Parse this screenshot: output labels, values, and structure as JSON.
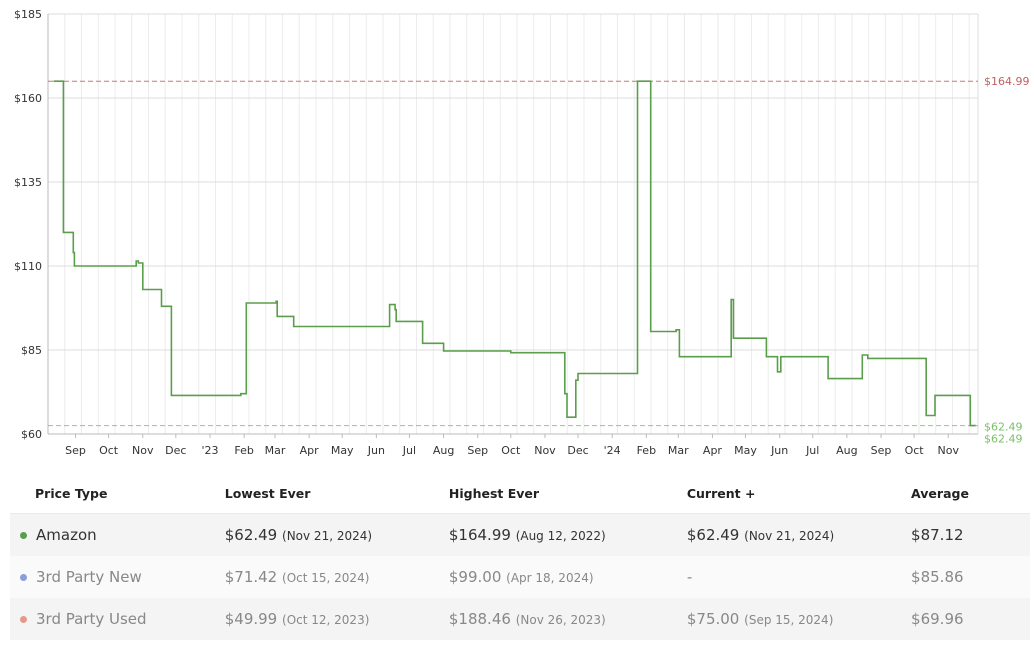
{
  "chart_data": {
    "type": "line",
    "xlim": [
      "2022-08-07",
      "2024-11-28"
    ],
    "ylim": [
      60,
      185
    ],
    "y_ticks": [
      60,
      85,
      110,
      135,
      160,
      185
    ],
    "y_tick_labels": [
      "$60",
      "$85",
      "$110",
      "$135",
      "$160",
      "$185"
    ],
    "x_ticks": [
      {
        "date": "2022-09-01",
        "label": "Sep"
      },
      {
        "date": "2022-10-01",
        "label": "Oct"
      },
      {
        "date": "2022-11-01",
        "label": "Nov"
      },
      {
        "date": "2022-12-01",
        "label": "Dec"
      },
      {
        "date": "2023-01-01",
        "label": "'23"
      },
      {
        "date": "2023-02-01",
        "label": "Feb"
      },
      {
        "date": "2023-03-01",
        "label": "Mar"
      },
      {
        "date": "2023-04-01",
        "label": "Apr"
      },
      {
        "date": "2023-05-01",
        "label": "May"
      },
      {
        "date": "2023-06-01",
        "label": "Jun"
      },
      {
        "date": "2023-07-01",
        "label": "Jul"
      },
      {
        "date": "2023-08-01",
        "label": "Aug"
      },
      {
        "date": "2023-09-01",
        "label": "Sep"
      },
      {
        "date": "2023-10-01",
        "label": "Oct"
      },
      {
        "date": "2023-11-01",
        "label": "Nov"
      },
      {
        "date": "2023-12-01",
        "label": "Dec"
      },
      {
        "date": "2024-01-01",
        "label": "'24"
      },
      {
        "date": "2024-02-01",
        "label": "Feb"
      },
      {
        "date": "2024-03-01",
        "label": "Mar"
      },
      {
        "date": "2024-04-01",
        "label": "Apr"
      },
      {
        "date": "2024-05-01",
        "label": "May"
      },
      {
        "date": "2024-06-01",
        "label": "Jun"
      },
      {
        "date": "2024-07-01",
        "label": "Jul"
      },
      {
        "date": "2024-08-01",
        "label": "Aug"
      },
      {
        "date": "2024-09-01",
        "label": "Sep"
      },
      {
        "date": "2024-10-01",
        "label": "Oct"
      },
      {
        "date": "2024-11-01",
        "label": "Nov"
      }
    ],
    "grid": true,
    "reference_lines": [
      {
        "label": "$164.99",
        "value": 164.99,
        "color": "#c06060"
      },
      {
        "label": "$62.49",
        "value": 62.49,
        "color": "#7cbf6a"
      }
    ],
    "end_labels": [
      {
        "label": "$62.49",
        "color": "#7cbf6a"
      },
      {
        "label": "$62.49",
        "color": "#7cbf6a"
      }
    ],
    "series": [
      {
        "name": "Amazon",
        "color": "#5a9e4c",
        "step": true,
        "points": [
          [
            "2022-08-12",
            164.99
          ],
          [
            "2022-08-21",
            120
          ],
          [
            "2022-08-30",
            114
          ],
          [
            "2022-08-31",
            109.99
          ],
          [
            "2022-10-26",
            111.5
          ],
          [
            "2022-10-28",
            110.9
          ],
          [
            "2022-11-01",
            103
          ],
          [
            "2022-11-18",
            98
          ],
          [
            "2022-11-27",
            71.5
          ],
          [
            "2023-01-29",
            72
          ],
          [
            "2023-02-03",
            99
          ],
          [
            "2023-03-02",
            99.5
          ],
          [
            "2023-03-03",
            95
          ],
          [
            "2023-03-18",
            92
          ],
          [
            "2023-06-13",
            98.5
          ],
          [
            "2023-06-18",
            97
          ],
          [
            "2023-06-19",
            93.5
          ],
          [
            "2023-07-13",
            87
          ],
          [
            "2023-08-01",
            84.7
          ],
          [
            "2023-10-01",
            84.2
          ],
          [
            "2023-11-19",
            72
          ],
          [
            "2023-11-21",
            65
          ],
          [
            "2023-11-29",
            76
          ],
          [
            "2023-12-01",
            78
          ],
          [
            "2024-01-24",
            164.99
          ],
          [
            "2024-02-05",
            90.5
          ],
          [
            "2024-02-28",
            91
          ],
          [
            "2024-03-02",
            83
          ],
          [
            "2024-04-18",
            99.99
          ],
          [
            "2024-04-20",
            88.5
          ],
          [
            "2024-05-20",
            83
          ],
          [
            "2024-05-30",
            78.5
          ],
          [
            "2024-06-02",
            83
          ],
          [
            "2024-07-15",
            76.5
          ],
          [
            "2024-08-15",
            83.5
          ],
          [
            "2024-08-20",
            82.5
          ],
          [
            "2024-10-12",
            65.5
          ],
          [
            "2024-10-20",
            71.5
          ],
          [
            "2024-11-21",
            62.49
          ],
          [
            "2024-11-26",
            62.49
          ]
        ]
      }
    ]
  },
  "table": {
    "headers": [
      "Price Type",
      "Lowest Ever",
      "Highest Ever",
      "Current +",
      "Average"
    ],
    "rows": [
      {
        "type": "Amazon",
        "dot_color": "#5a9e4c",
        "lowest": "$62.49",
        "lowest_date": "(Nov 21, 2024)",
        "highest": "$164.99",
        "highest_date": "(Aug 12, 2022)",
        "current": "$62.49",
        "current_date": "(Nov 21, 2024)",
        "average": "$87.12"
      },
      {
        "type": "3rd Party New",
        "dot_color": "#8a9ed8",
        "lowest": "$71.42",
        "lowest_date": "(Oct 15, 2024)",
        "highest": "$99.00",
        "highest_date": "(Apr 18, 2024)",
        "current": "-",
        "current_date": "",
        "average": "$85.86"
      },
      {
        "type": "3rd Party Used",
        "dot_color": "#e29a8a",
        "lowest": "$49.99",
        "lowest_date": "(Oct 12, 2023)",
        "highest": "$188.46",
        "highest_date": "(Nov 26, 2023)",
        "current": "$75.00",
        "current_date": "(Sep 15, 2024)",
        "average": "$69.96"
      }
    ]
  }
}
